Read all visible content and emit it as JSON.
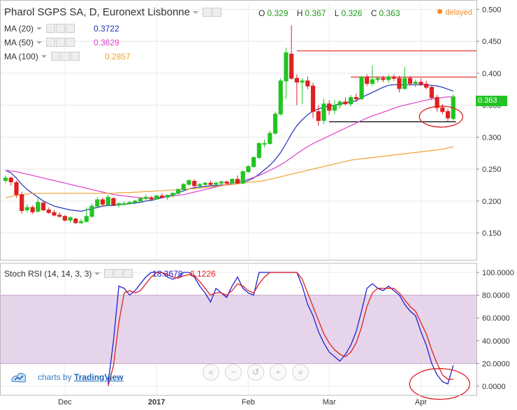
{
  "header": {
    "title": "Pharol SGPS SA, D, Euronext Lisbonne",
    "ohlc": [
      {
        "key": "O",
        "value": "0.329"
      },
      {
        "key": "H",
        "value": "0.367"
      },
      {
        "key": "L",
        "value": "0.326"
      },
      {
        "key": "C",
        "value": "0.363"
      }
    ],
    "delayed": "delayed"
  },
  "indicators": [
    {
      "label": "MA (20)",
      "value": "0.3722",
      "color": "#1f2fb5"
    },
    {
      "label": "MA (50)",
      "value": "0.3629",
      "color": "#e040c8"
    },
    {
      "label": "MA (100)",
      "value": "0.2857",
      "color": "#f0a030"
    }
  ],
  "stoch": {
    "label": "Stoch RSI (14, 14, 3, 3)",
    "k_value": "18.3678",
    "d_value": "6.1226",
    "k_color": "#2020d0",
    "d_color": "#e02020"
  },
  "branding": {
    "prefix": "charts by",
    "name": "TradingView"
  },
  "nav_icons": [
    "rewind-icon",
    "zoom-out-icon",
    "reset-icon",
    "zoom-in-icon",
    "forward-icon"
  ],
  "last_price_tag": "0.363",
  "colors": {
    "up": "#22c422",
    "down": "#e02020",
    "band": "#e6d5ea",
    "resistance": "#e02020",
    "support": "#000000"
  },
  "chart_data": [
    {
      "type": "candlestick",
      "title": "Pharol SGPS SA, D, Euronext Lisbonne",
      "x_tick_labels": [
        "Dec",
        "2017",
        "Feb",
        "Mar",
        "Apr"
      ],
      "y_tick_labels": [
        "0.500",
        "0.450",
        "0.400",
        "0.350",
        "0.300",
        "0.250",
        "0.200",
        "0.150"
      ],
      "ylim": [
        0.108,
        0.508
      ],
      "grid": true,
      "candles": [
        [
          0.232,
          0.24,
          0.228,
          0.236
        ],
        [
          0.236,
          0.238,
          0.224,
          0.23
        ],
        [
          0.229,
          0.232,
          0.205,
          0.21
        ],
        [
          0.21,
          0.214,
          0.18,
          0.185
        ],
        [
          0.186,
          0.195,
          0.182,
          0.19
        ],
        [
          0.19,
          0.193,
          0.18,
          0.183
        ],
        [
          0.184,
          0.205,
          0.182,
          0.198
        ],
        [
          0.197,
          0.2,
          0.184,
          0.186
        ],
        [
          0.186,
          0.19,
          0.18,
          0.182
        ],
        [
          0.182,
          0.186,
          0.176,
          0.178
        ],
        [
          0.178,
          0.182,
          0.174,
          0.176
        ],
        [
          0.176,
          0.178,
          0.168,
          0.17
        ],
        [
          0.17,
          0.176,
          0.166,
          0.174
        ],
        [
          0.172,
          0.174,
          0.164,
          0.166
        ],
        [
          0.166,
          0.172,
          0.164,
          0.168
        ],
        [
          0.168,
          0.19,
          0.166,
          0.176
        ],
        [
          0.176,
          0.196,
          0.174,
          0.192
        ],
        [
          0.192,
          0.206,
          0.19,
          0.202
        ],
        [
          0.202,
          0.205,
          0.192,
          0.195
        ],
        [
          0.194,
          0.21,
          0.192,
          0.206
        ],
        [
          0.204,
          0.206,
          0.192,
          0.194
        ],
        [
          0.194,
          0.198,
          0.19,
          0.196
        ],
        [
          0.196,
          0.2,
          0.192,
          0.196
        ],
        [
          0.196,
          0.2,
          0.194,
          0.198
        ],
        [
          0.198,
          0.202,
          0.195,
          0.2
        ],
        [
          0.2,
          0.206,
          0.198,
          0.204
        ],
        [
          0.204,
          0.21,
          0.2,
          0.206
        ],
        [
          0.205,
          0.208,
          0.2,
          0.203
        ],
        [
          0.203,
          0.21,
          0.202,
          0.208
        ],
        [
          0.208,
          0.212,
          0.204,
          0.206
        ],
        [
          0.206,
          0.21,
          0.202,
          0.209
        ],
        [
          0.209,
          0.214,
          0.206,
          0.212
        ],
        [
          0.212,
          0.22,
          0.21,
          0.218
        ],
        [
          0.218,
          0.228,
          0.216,
          0.226
        ],
        [
          0.226,
          0.234,
          0.224,
          0.232
        ],
        [
          0.231,
          0.234,
          0.222,
          0.224
        ],
        [
          0.224,
          0.228,
          0.22,
          0.226
        ],
        [
          0.226,
          0.23,
          0.224,
          0.228
        ],
        [
          0.228,
          0.232,
          0.224,
          0.226
        ],
        [
          0.226,
          0.23,
          0.222,
          0.228
        ],
        [
          0.228,
          0.232,
          0.226,
          0.23
        ],
        [
          0.23,
          0.232,
          0.226,
          0.228
        ],
        [
          0.228,
          0.236,
          0.226,
          0.234
        ],
        [
          0.234,
          0.24,
          0.226,
          0.228
        ],
        [
          0.228,
          0.248,
          0.226,
          0.246
        ],
        [
          0.246,
          0.256,
          0.244,
          0.254
        ],
        [
          0.254,
          0.27,
          0.252,
          0.268
        ],
        [
          0.268,
          0.292,
          0.266,
          0.29
        ],
        [
          0.29,
          0.296,
          0.284,
          0.29
        ],
        [
          0.29,
          0.31,
          0.288,
          0.306
        ],
        [
          0.306,
          0.34,
          0.304,
          0.336
        ],
        [
          0.336,
          0.392,
          0.334,
          0.388
        ],
        [
          0.388,
          0.44,
          0.36,
          0.432
        ],
        [
          0.43,
          0.475,
          0.39,
          0.392
        ],
        [
          0.392,
          0.398,
          0.35,
          0.386
        ],
        [
          0.386,
          0.392,
          0.352,
          0.388
        ],
        [
          0.388,
          0.395,
          0.375,
          0.38
        ],
        [
          0.38,
          0.385,
          0.33,
          0.34
        ],
        [
          0.34,
          0.35,
          0.318,
          0.326
        ],
        [
          0.326,
          0.36,
          0.32,
          0.352
        ],
        [
          0.352,
          0.358,
          0.335,
          0.342
        ],
        [
          0.342,
          0.358,
          0.336,
          0.35
        ],
        [
          0.35,
          0.358,
          0.345,
          0.355
        ],
        [
          0.355,
          0.362,
          0.35,
          0.352
        ],
        [
          0.352,
          0.366,
          0.348,
          0.362
        ],
        [
          0.362,
          0.368,
          0.355,
          0.36
        ],
        [
          0.36,
          0.396,
          0.358,
          0.394
        ],
        [
          0.394,
          0.398,
          0.38,
          0.384
        ],
        [
          0.384,
          0.412,
          0.38,
          0.39
        ],
        [
          0.39,
          0.395,
          0.385,
          0.392
        ],
        [
          0.392,
          0.396,
          0.386,
          0.39
        ],
        [
          0.39,
          0.398,
          0.385,
          0.394
        ],
        [
          0.394,
          0.398,
          0.388,
          0.392
        ],
        [
          0.392,
          0.396,
          0.37,
          0.376
        ],
        [
          0.376,
          0.41,
          0.374,
          0.392
        ],
        [
          0.392,
          0.396,
          0.38,
          0.384
        ],
        [
          0.384,
          0.39,
          0.378,
          0.386
        ],
        [
          0.386,
          0.392,
          0.38,
          0.383
        ],
        [
          0.383,
          0.388,
          0.375,
          0.378
        ],
        [
          0.378,
          0.38,
          0.358,
          0.362
        ],
        [
          0.362,
          0.366,
          0.34,
          0.346
        ],
        [
          0.346,
          0.352,
          0.336,
          0.34
        ],
        [
          0.34,
          0.344,
          0.325,
          0.33
        ],
        [
          0.329,
          0.367,
          0.326,
          0.363
        ]
      ],
      "moving_averages": [
        {
          "name": "MA (20)",
          "values": [
            0.248,
            0.244,
            0.236,
            0.226,
            0.218,
            0.212,
            0.206,
            0.2,
            0.196,
            0.192,
            0.19,
            0.188,
            0.186,
            0.185,
            0.184,
            0.186,
            0.188,
            0.19,
            0.192,
            0.193,
            0.193,
            0.194,
            0.195,
            0.196,
            0.197,
            0.198,
            0.2,
            0.201,
            0.203,
            0.205,
            0.207,
            0.21,
            0.213,
            0.216,
            0.219,
            0.221,
            0.222,
            0.223,
            0.224,
            0.224,
            0.225,
            0.225,
            0.226,
            0.227,
            0.229,
            0.232,
            0.236,
            0.242,
            0.249,
            0.256,
            0.265,
            0.276,
            0.29,
            0.305,
            0.318,
            0.327,
            0.335,
            0.341,
            0.344,
            0.347,
            0.349,
            0.35,
            0.352,
            0.354,
            0.355,
            0.357,
            0.362,
            0.366,
            0.37,
            0.374,
            0.378,
            0.381,
            0.382,
            0.382,
            0.382,
            0.382,
            0.382,
            0.382,
            0.382,
            0.381,
            0.38,
            0.378,
            0.375,
            0.372
          ]
        },
        {
          "name": "MA (50)",
          "values": [
            0.248,
            0.247,
            0.246,
            0.244,
            0.242,
            0.24,
            0.238,
            0.236,
            0.234,
            0.232,
            0.23,
            0.228,
            0.226,
            0.224,
            0.222,
            0.22,
            0.218,
            0.216,
            0.214,
            0.212,
            0.21,
            0.209,
            0.208,
            0.207,
            0.206,
            0.205,
            0.205,
            0.205,
            0.205,
            0.206,
            0.207,
            0.208,
            0.209,
            0.21,
            0.212,
            0.214,
            0.216,
            0.218,
            0.22,
            0.222,
            0.224,
            0.226,
            0.228,
            0.23,
            0.232,
            0.234,
            0.237,
            0.24,
            0.244,
            0.248,
            0.252,
            0.257,
            0.262,
            0.268,
            0.274,
            0.28,
            0.285,
            0.29,
            0.294,
            0.298,
            0.302,
            0.306,
            0.31,
            0.314,
            0.318,
            0.322,
            0.326,
            0.33,
            0.333,
            0.336,
            0.339,
            0.342,
            0.345,
            0.348,
            0.35,
            0.352,
            0.354,
            0.356,
            0.358,
            0.36,
            0.361,
            0.362,
            0.363,
            0.363
          ]
        },
        {
          "name": "MA (100)",
          "values": [
            0.205,
            0.207,
            0.209,
            0.21,
            0.211,
            0.212,
            0.212,
            0.212,
            0.212,
            0.212,
            0.212,
            0.212,
            0.212,
            0.212,
            0.212,
            0.212,
            0.212,
            0.212,
            0.212,
            0.212,
            0.212,
            0.213,
            0.213,
            0.213,
            0.214,
            0.214,
            0.215,
            0.215,
            0.216,
            0.216,
            0.217,
            0.217,
            0.218,
            0.218,
            0.219,
            0.219,
            0.22,
            0.221,
            0.222,
            0.223,
            0.224,
            0.225,
            0.226,
            0.227,
            0.228,
            0.229,
            0.23,
            0.231,
            0.232,
            0.234,
            0.236,
            0.238,
            0.24,
            0.242,
            0.244,
            0.246,
            0.248,
            0.25,
            0.252,
            0.254,
            0.256,
            0.258,
            0.26,
            0.262,
            0.264,
            0.265,
            0.266,
            0.267,
            0.268,
            0.269,
            0.27,
            0.271,
            0.272,
            0.273,
            0.274,
            0.275,
            0.276,
            0.277,
            0.278,
            0.279,
            0.28,
            0.281,
            0.283,
            0.285
          ]
        }
      ],
      "levels": {
        "resistance_1": 0.435,
        "resistance_2": 0.394,
        "support": 0.324
      }
    },
    {
      "type": "line",
      "title": "Stoch RSI (14, 14, 3, 3)",
      "y_tick_labels": [
        "100.0000",
        "80.0000",
        "60.0000",
        "40.0000",
        "20.0000",
        "0.0000"
      ],
      "ylim": [
        -8,
        108
      ],
      "band": [
        20,
        80
      ],
      "series": [
        {
          "name": "K",
          "values": [
            null,
            null,
            null,
            null,
            null,
            null,
            null,
            null,
            null,
            null,
            null,
            null,
            null,
            null,
            null,
            null,
            null,
            null,
            null,
            2,
            40,
            88,
            86,
            80,
            84,
            90,
            96,
            100,
            100,
            100,
            96,
            94,
            96,
            100,
            100,
            96,
            88,
            82,
            74,
            86,
            82,
            78,
            88,
            96,
            86,
            82,
            80,
            100,
            100,
            100,
            100,
            100,
            100,
            100,
            100,
            88,
            72,
            62,
            48,
            38,
            30,
            26,
            22,
            28,
            36,
            48,
            66,
            86,
            90,
            86,
            84,
            88,
            84,
            80,
            72,
            66,
            62,
            48,
            36,
            20,
            10,
            4,
            2,
            18.3678
          ]
        },
        {
          "name": "D",
          "values": [
            null,
            null,
            null,
            null,
            null,
            null,
            null,
            null,
            null,
            null,
            null,
            null,
            null,
            null,
            null,
            null,
            null,
            null,
            null,
            0,
            18,
            56,
            82,
            84,
            82,
            84,
            90,
            96,
            100,
            100,
            98,
            96,
            95,
            97,
            98,
            97,
            92,
            86,
            80,
            82,
            82,
            80,
            84,
            90,
            88,
            84,
            82,
            90,
            96,
            100,
            100,
            100,
            100,
            100,
            100,
            94,
            82,
            70,
            58,
            46,
            38,
            32,
            28,
            26,
            30,
            38,
            52,
            70,
            82,
            86,
            86,
            86,
            86,
            82,
            76,
            70,
            66,
            56,
            46,
            32,
            20,
            10,
            6,
            6.1226
          ]
        }
      ]
    }
  ]
}
